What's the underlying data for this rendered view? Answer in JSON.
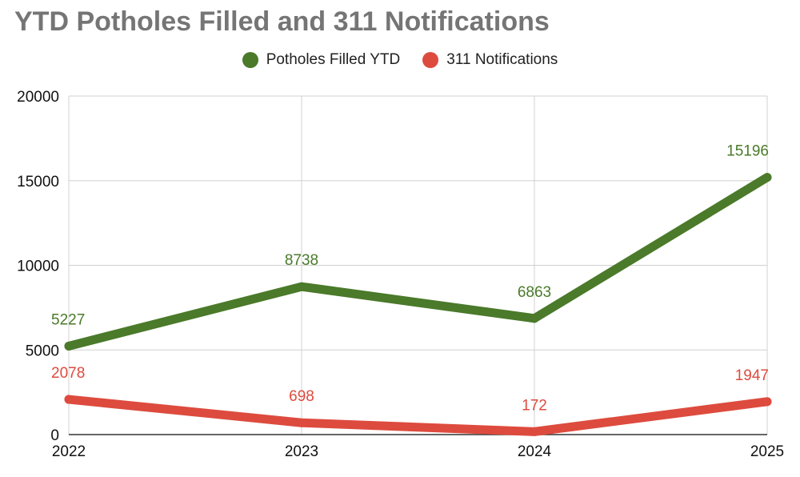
{
  "chart_data": {
    "type": "line",
    "title": "YTD Potholes Filled and 311 Notifications",
    "categories": [
      "2022",
      "2023",
      "2024",
      "2025"
    ],
    "series": [
      {
        "name": "Potholes Filled YTD",
        "values": [
          5227,
          8738,
          6863,
          15196
        ],
        "color": "#4a7a2a"
      },
      {
        "name": "311 Notifications",
        "values": [
          2078,
          698,
          172,
          1947
        ],
        "color": "#dd4b3e"
      }
    ],
    "yticks": [
      "0",
      "5000",
      "10000",
      "15000",
      "20000"
    ],
    "ylim": [
      0,
      20000
    ],
    "xlabel": "",
    "ylabel": "",
    "grid": true,
    "legend_position": "top-center"
  }
}
